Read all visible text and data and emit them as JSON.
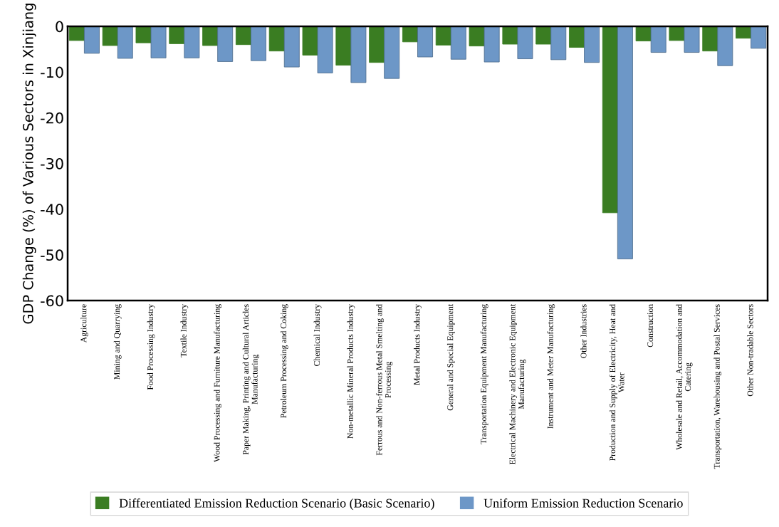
{
  "chart_data": {
    "type": "bar",
    "ylabel": "GDP Change (%) of Various Sectors in Xinjiang",
    "categories": [
      "Agriculture",
      "Mining and Quarrying",
      "Food Processing Industry",
      "Textile Industry",
      "Wood Processing and Furniture Manufacturing",
      "Paper Making, Printing and Cultural Articles\nManufacturing",
      "Petroleum Processing and Coking",
      "Chemical Industry",
      "Non-metallic Mineral Products Industry",
      "Ferrous and Non-ferrous Metal Smelting and\nProcessing",
      "Metal Products Industry",
      "General and Special Equipment",
      "Transportation Equipment Manufacturing",
      "Electrical Machinery and Electronic Equipment\nManufacturing",
      "Instrument and Meter Manufacturing",
      "Other Industries",
      "Production and Supply of Electricity, Heat and\nWater",
      "Construction",
      "Wholesale and Retail, Accommodation and\nCatering",
      "Transportation, Warehousing and Postal Services",
      "Other Non-tradable Sectors"
    ],
    "series": [
      {
        "name": "Differentiated Emission Reduction Scenario (Basic Scenario)",
        "color": "#3a7d22",
        "values": [
          -3.1,
          -4.2,
          -3.6,
          -3.8,
          -4.2,
          -4.0,
          -5.4,
          -6.3,
          -8.5,
          -7.9,
          -3.4,
          -4.1,
          -4.3,
          -3.9,
          -3.9,
          -4.6,
          -40.8,
          -3.2,
          -3.1,
          -5.4,
          -2.6
        ]
      },
      {
        "name": "Uniform Emission Reduction Scenario",
        "color": "#6d97c7",
        "values": [
          -5.9,
          -7.0,
          -6.9,
          -6.9,
          -7.7,
          -7.5,
          -8.9,
          -10.2,
          -12.3,
          -11.4,
          -6.7,
          -7.2,
          -7.8,
          -7.1,
          -7.3,
          -7.9,
          -50.9,
          -5.7,
          -5.7,
          -8.6,
          -4.8
        ]
      }
    ],
    "ylim": [
      -60,
      0
    ],
    "yticks": [
      {
        "value": 0,
        "label": "0"
      },
      {
        "value": -10,
        "label": "-10"
      },
      {
        "value": -20,
        "label": "-20"
      },
      {
        "value": -30,
        "label": "-30"
      },
      {
        "value": -40,
        "label": "-40"
      },
      {
        "value": -50,
        "label": "-50"
      },
      {
        "value": -60,
        "label": "-60"
      }
    ],
    "grid": false,
    "legend": "bottom"
  }
}
